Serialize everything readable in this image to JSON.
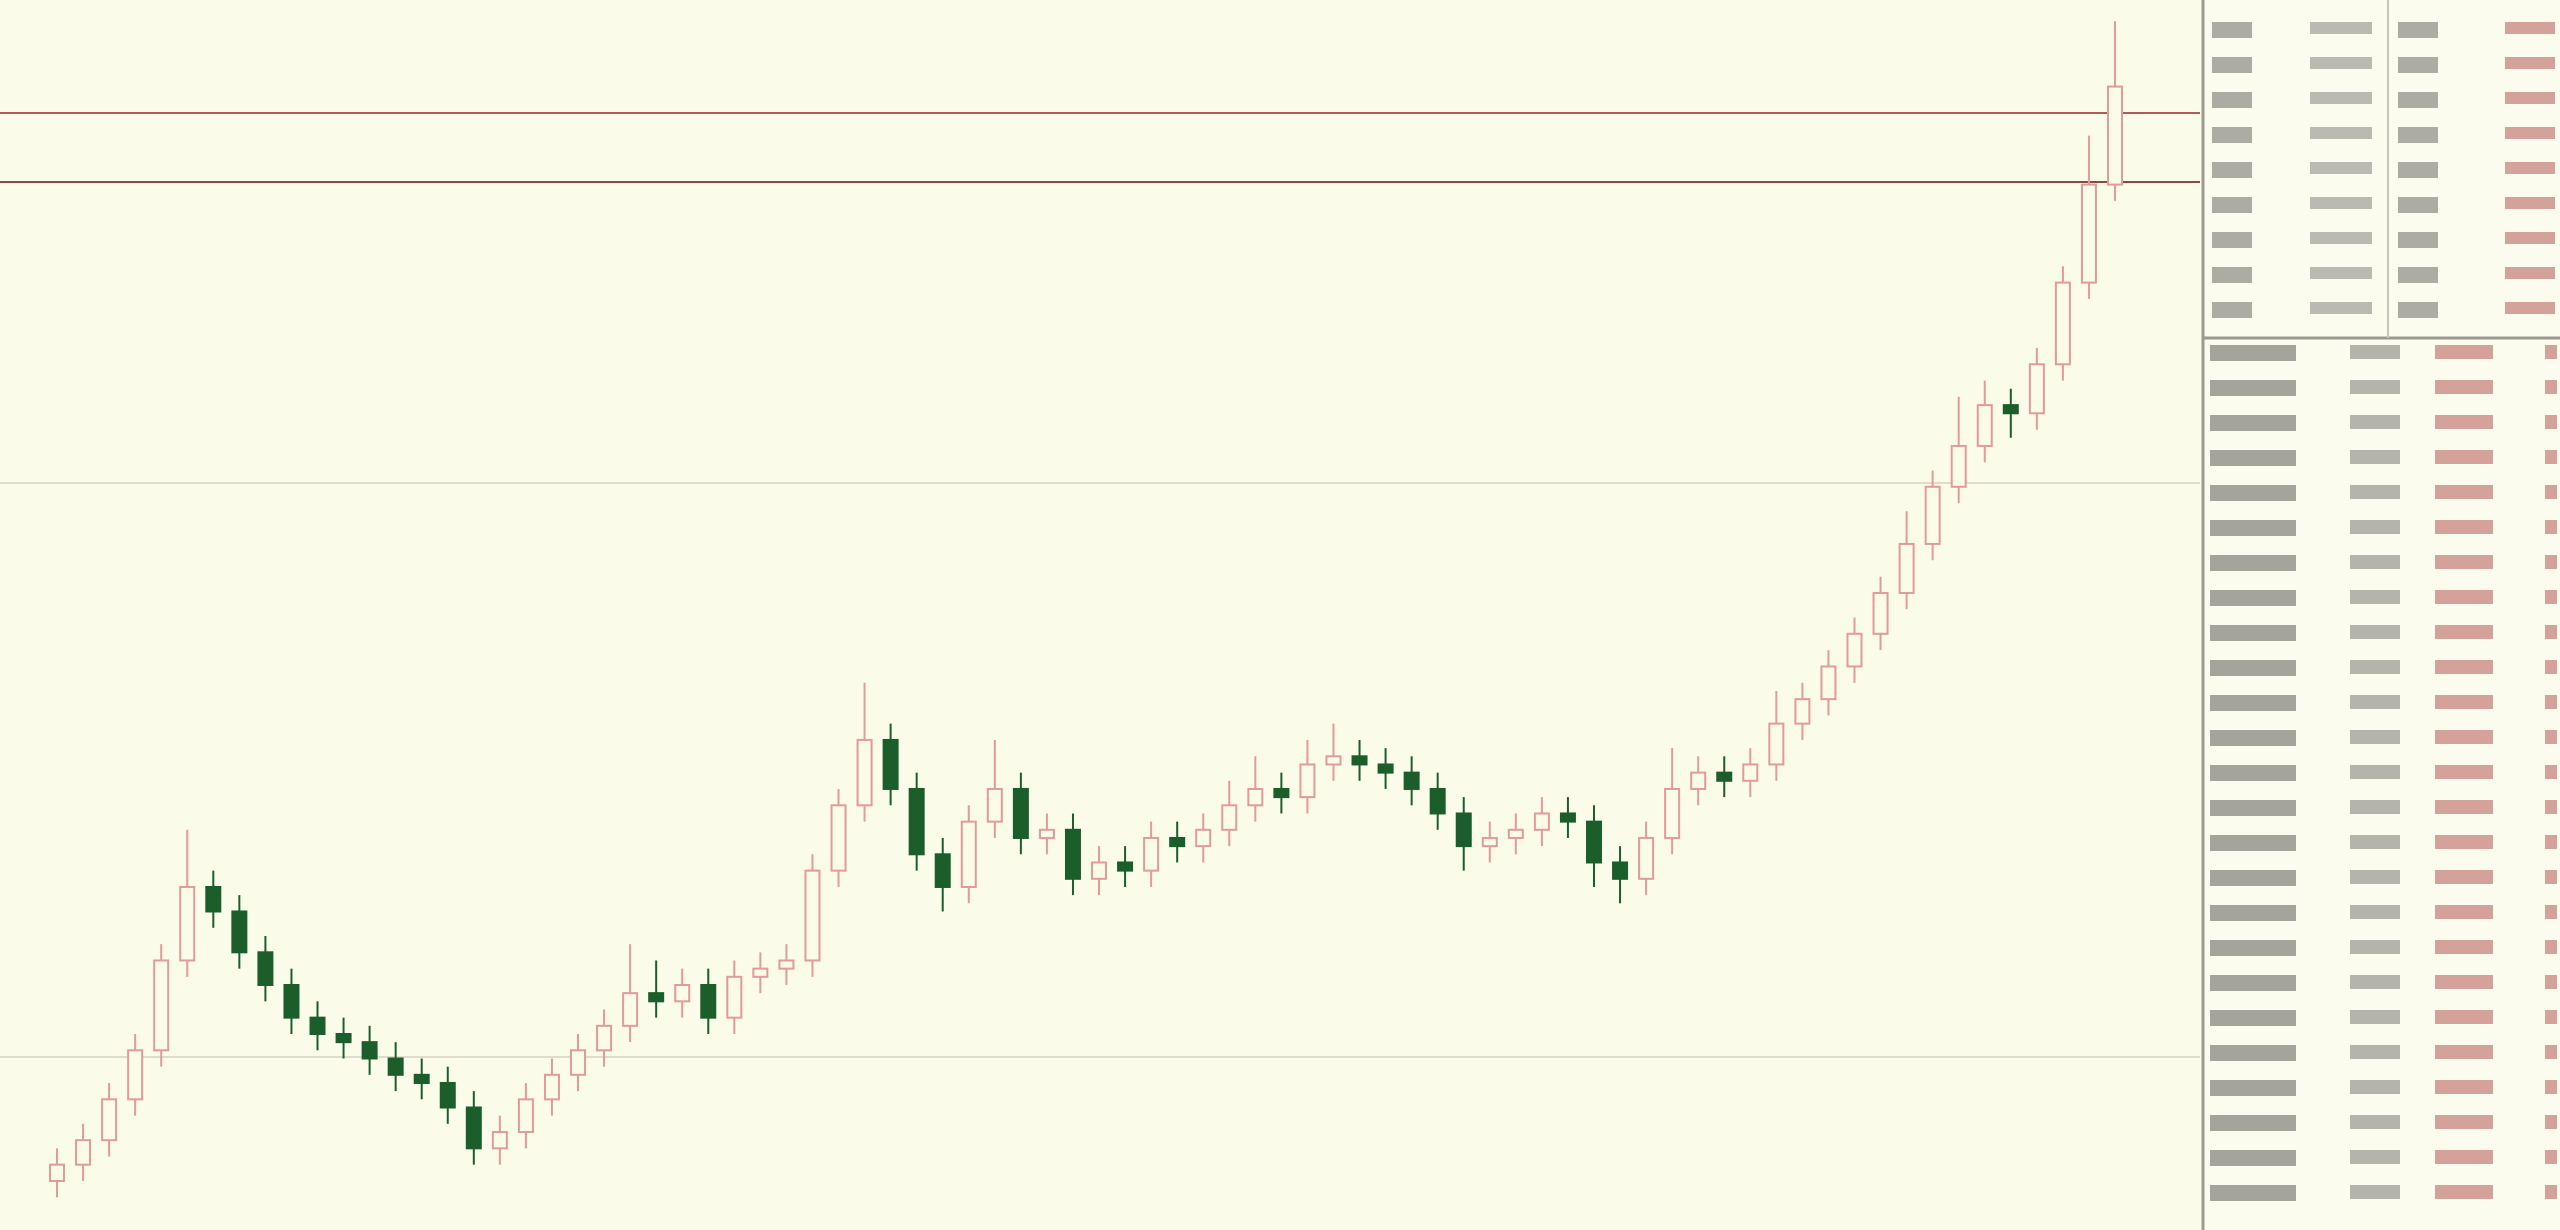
{
  "chart_data": {
    "type": "candlestick",
    "ylim": [
      0,
      753
    ],
    "up_color": "#e39a9a",
    "down_color": "#1b5e2c",
    "open": [
      30,
      40,
      55,
      80,
      110,
      165,
      210,
      195,
      170,
      150,
      130,
      120,
      115,
      105,
      95,
      90,
      75,
      50,
      60,
      80,
      95,
      110,
      125,
      145,
      140,
      150,
      130,
      155,
      160,
      165,
      220,
      260,
      300,
      270,
      230,
      210,
      250,
      270,
      240,
      245,
      215,
      225,
      220,
      240,
      235,
      245,
      260,
      270,
      265,
      285,
      290,
      285,
      280,
      270,
      255,
      235,
      240,
      245,
      255,
      250,
      225,
      215,
      240,
      270,
      280,
      275,
      285,
      310,
      325,
      345,
      365,
      390,
      420,
      455,
      480,
      505,
      500,
      530,
      580,
      640
    ],
    "high": [
      50,
      65,
      90,
      120,
      175,
      245,
      220,
      205,
      180,
      160,
      140,
      130,
      125,
      115,
      105,
      100,
      85,
      70,
      90,
      105,
      120,
      135,
      175,
      165,
      160,
      160,
      165,
      170,
      175,
      230,
      270,
      335,
      310,
      280,
      240,
      260,
      300,
      280,
      255,
      255,
      235,
      235,
      250,
      250,
      255,
      275,
      290,
      280,
      300,
      310,
      300,
      295,
      290,
      280,
      265,
      250,
      255,
      265,
      265,
      260,
      235,
      250,
      295,
      290,
      290,
      295,
      330,
      335,
      355,
      375,
      400,
      440,
      465,
      510,
      520,
      515,
      540,
      590,
      670,
      740
    ],
    "low": [
      20,
      30,
      45,
      70,
      100,
      155,
      185,
      160,
      140,
      120,
      110,
      105,
      95,
      85,
      80,
      65,
      40,
      40,
      50,
      70,
      85,
      100,
      115,
      130,
      130,
      120,
      120,
      145,
      150,
      155,
      210,
      250,
      260,
      220,
      195,
      200,
      240,
      230,
      230,
      205,
      205,
      210,
      210,
      225,
      225,
      235,
      250,
      255,
      255,
      275,
      275,
      270,
      260,
      245,
      220,
      225,
      230,
      235,
      240,
      210,
      200,
      205,
      230,
      260,
      265,
      265,
      275,
      300,
      315,
      335,
      355,
      380,
      410,
      445,
      470,
      485,
      490,
      520,
      570,
      630
    ],
    "close": [
      40,
      55,
      80,
      110,
      165,
      210,
      195,
      170,
      150,
      130,
      120,
      115,
      105,
      95,
      90,
      75,
      50,
      60,
      80,
      95,
      110,
      125,
      145,
      140,
      150,
      130,
      155,
      160,
      165,
      220,
      260,
      300,
      270,
      230,
      210,
      250,
      270,
      240,
      245,
      215,
      225,
      220,
      240,
      235,
      245,
      260,
      270,
      265,
      285,
      290,
      285,
      280,
      270,
      255,
      235,
      240,
      245,
      255,
      250,
      225,
      215,
      240,
      270,
      280,
      275,
      285,
      310,
      325,
      345,
      365,
      390,
      420,
      455,
      480,
      505,
      500,
      530,
      580,
      640,
      700
    ]
  }
}
